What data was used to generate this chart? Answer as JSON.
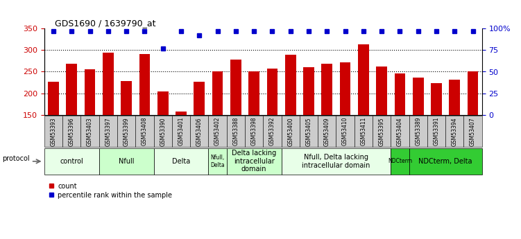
{
  "title": "GDS1690 / 1639790_at",
  "samples": [
    "GSM53393",
    "GSM53396",
    "GSM53403",
    "GSM53397",
    "GSM53399",
    "GSM53408",
    "GSM53390",
    "GSM53401",
    "GSM53406",
    "GSM53402",
    "GSM53388",
    "GSM53398",
    "GSM53392",
    "GSM53400",
    "GSM53405",
    "GSM53409",
    "GSM53410",
    "GSM53411",
    "GSM53395",
    "GSM53404",
    "GSM53389",
    "GSM53391",
    "GSM53394",
    "GSM53407"
  ],
  "counts": [
    226,
    269,
    256,
    295,
    229,
    291,
    204,
    157,
    227,
    251,
    278,
    250,
    257,
    289,
    261,
    268,
    272,
    313,
    262,
    246,
    236,
    224,
    232,
    251
  ],
  "percentiles": [
    97,
    97,
    97,
    97,
    97,
    97,
    77,
    97,
    92,
    97,
    97,
    97,
    97,
    97,
    97,
    97,
    97,
    97,
    97,
    97,
    97,
    97,
    97,
    97
  ],
  "groups": [
    {
      "label": "control",
      "start": 0,
      "end": 3,
      "color": "#e8ffe8"
    },
    {
      "label": "Nfull",
      "start": 3,
      "end": 6,
      "color": "#ccffcc"
    },
    {
      "label": "Delta",
      "start": 6,
      "end": 9,
      "color": "#e8ffe8"
    },
    {
      "label": "Nfull,\nDelta",
      "start": 9,
      "end": 10,
      "color": "#ccffcc"
    },
    {
      "label": "Delta lacking\nintracellular\ndomain",
      "start": 10,
      "end": 13,
      "color": "#ccffcc"
    },
    {
      "label": "Nfull, Delta lacking\nintracellular domain",
      "start": 13,
      "end": 19,
      "color": "#e8ffe8"
    },
    {
      "label": "NDCterm",
      "start": 19,
      "end": 20,
      "color": "#33cc33"
    },
    {
      "label": "NDCterm, Delta",
      "start": 20,
      "end": 24,
      "color": "#33cc33"
    }
  ],
  "ylim_left": [
    150,
    350
  ],
  "ylim_right": [
    0,
    100
  ],
  "yticks_left": [
    150,
    200,
    250,
    300,
    350
  ],
  "yticks_right": [
    0,
    25,
    50,
    75,
    100
  ],
  "bar_color": "#cc0000",
  "dot_color": "#0000cc",
  "bar_width": 0.6,
  "background_color": "#ffffff",
  "grid_color": "#000000"
}
